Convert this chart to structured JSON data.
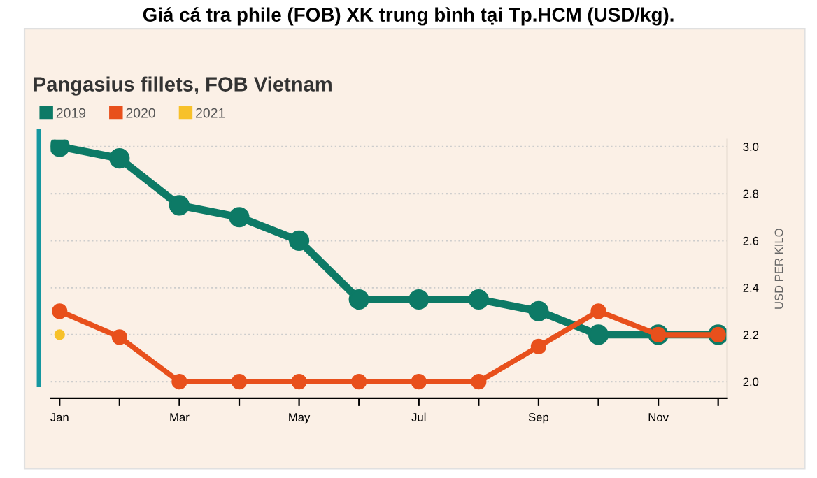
{
  "chart_data": {
    "type": "line",
    "title": "Giá cá tra phile (FOB) XK trung bình tại Tp.HCM (USD/kg).",
    "subtitle": "Pangasius fillets, FOB Vietnam",
    "ylabel": "USD PER KILO",
    "categories": [
      "Jan",
      null,
      "Mar",
      null,
      "May",
      null,
      "Jul",
      null,
      "Sep",
      null,
      "Nov",
      null
    ],
    "series": [
      {
        "name": "2019",
        "color": "#0d7a66",
        "values": [
          3.0,
          2.95,
          2.75,
          2.7,
          2.6,
          2.35,
          2.35,
          2.35,
          2.3,
          2.2,
          2.2,
          2.2
        ]
      },
      {
        "name": "2020",
        "color": "#e8501c",
        "values": [
          2.3,
          2.19,
          2.0,
          2.0,
          2.0,
          2.0,
          2.0,
          2.0,
          2.15,
          2.3,
          2.2,
          2.2
        ]
      },
      {
        "name": "2021",
        "color": "#f7c12a",
        "values": [
          2.2,
          null,
          null,
          null,
          null,
          null,
          null,
          null,
          null,
          null,
          null,
          null
        ]
      }
    ],
    "ylim": [
      1.93,
      3.03
    ],
    "yticks": [
      {
        "value": 2.0,
        "label": "2.0"
      },
      {
        "value": 2.2,
        "label": "2.2"
      },
      {
        "value": 2.4,
        "label": "2.4"
      },
      {
        "value": 2.6,
        "label": "2.6"
      },
      {
        "value": 2.8,
        "label": "2.8"
      },
      {
        "value": 3.0,
        "label": "3.0"
      }
    ],
    "grid": "y",
    "legend": "top left",
    "marker": "circle",
    "line_style": "solid"
  }
}
